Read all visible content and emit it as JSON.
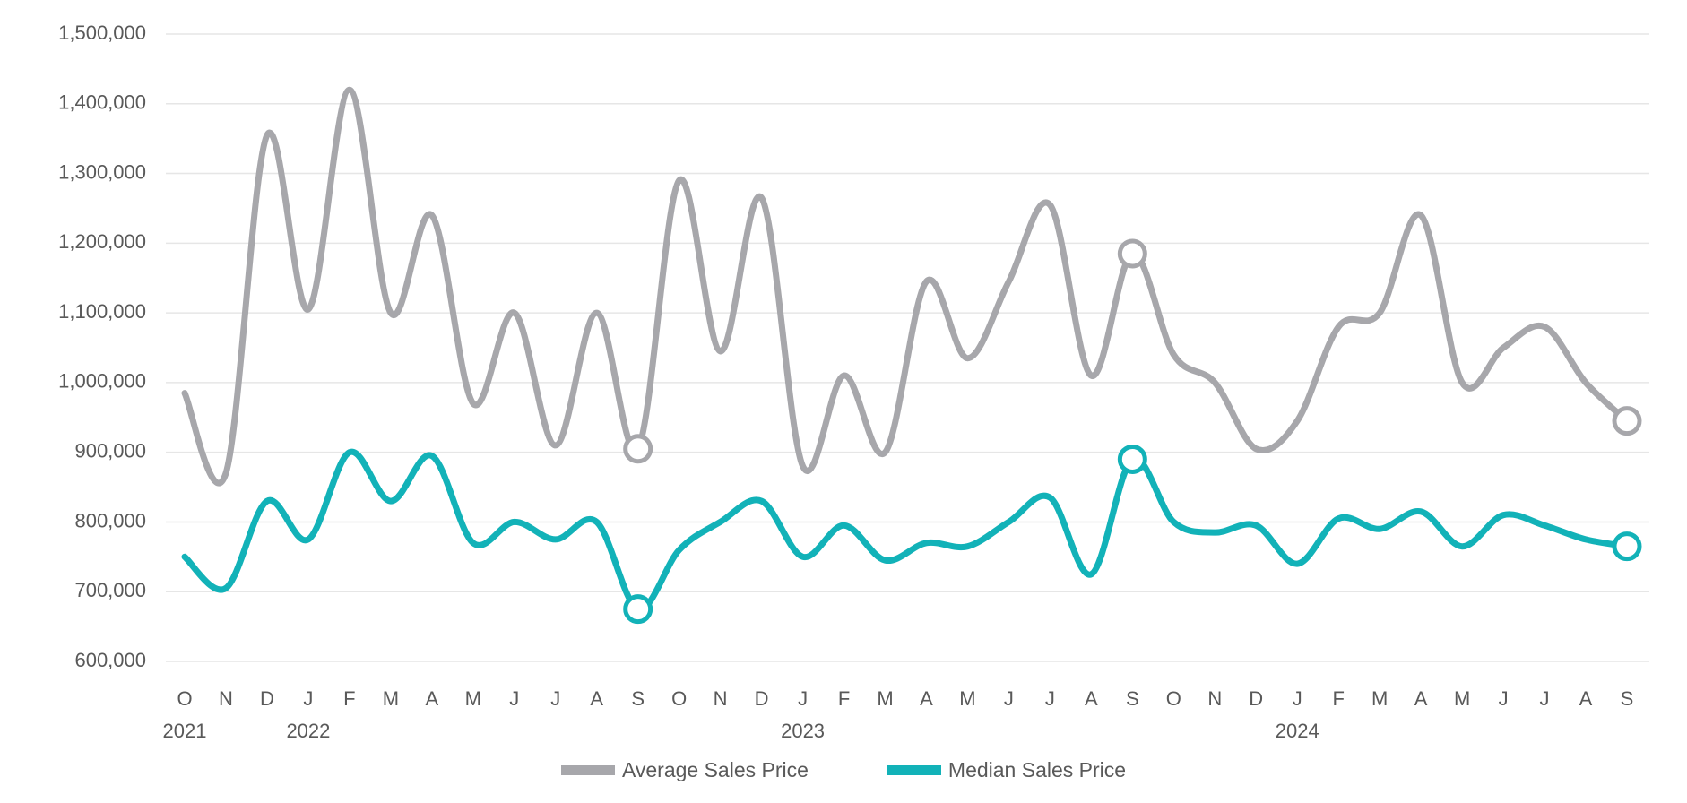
{
  "chart_data": {
    "type": "line",
    "ylim": [
      600000,
      1500000
    ],
    "yticks": [
      "1,500,000",
      "1,400,000",
      "1,300,000",
      "1,200,000",
      "1,100,000",
      "1,000,000",
      "900,000",
      "800,000",
      "700,000",
      "600,000"
    ],
    "ytick_values": [
      1500000,
      1400000,
      1300000,
      1200000,
      1100000,
      1000000,
      900000,
      800000,
      700000,
      600000
    ],
    "categories": [
      "O",
      "N",
      "D",
      "J",
      "F",
      "M",
      "A",
      "M",
      "J",
      "J",
      "A",
      "S",
      "O",
      "N",
      "D",
      "J",
      "F",
      "M",
      "A",
      "M",
      "J",
      "J",
      "A",
      "S",
      "O",
      "N",
      "D",
      "J",
      "F",
      "M",
      "A",
      "M",
      "J",
      "J",
      "A",
      "S"
    ],
    "year_labels": [
      {
        "label": "2021",
        "index": 0
      },
      {
        "label": "2022",
        "index": 3
      },
      {
        "label": "2023",
        "index": 15
      },
      {
        "label": "2024",
        "index": 27
      }
    ],
    "series": [
      {
        "name": "Average Sales Price",
        "color": "#a7a7ab",
        "values": [
          985000,
          870000,
          1355000,
          1105000,
          1420000,
          1100000,
          1240000,
          970000,
          1100000,
          910000,
          1100000,
          905000,
          1290000,
          1045000,
          1265000,
          880000,
          1010000,
          900000,
          1145000,
          1035000,
          1145000,
          1255000,
          1010000,
          1185000,
          1040000,
          1000000,
          905000,
          945000,
          1080000,
          1100000,
          1240000,
          1000000,
          1050000,
          1080000,
          1000000,
          945000
        ],
        "markers": [
          11,
          23,
          35
        ]
      },
      {
        "name": "Median Sales Price",
        "color": "#12b2b8",
        "values": [
          750000,
          705000,
          830000,
          775000,
          900000,
          830000,
          895000,
          770000,
          800000,
          775000,
          800000,
          675000,
          760000,
          800000,
          830000,
          750000,
          795000,
          745000,
          770000,
          765000,
          800000,
          835000,
          725000,
          890000,
          800000,
          785000,
          795000,
          740000,
          805000,
          790000,
          815000,
          765000,
          810000,
          795000,
          775000,
          765000
        ],
        "markers": [
          11,
          23,
          35
        ]
      }
    ],
    "grid": true,
    "legend_position": "bottom"
  }
}
